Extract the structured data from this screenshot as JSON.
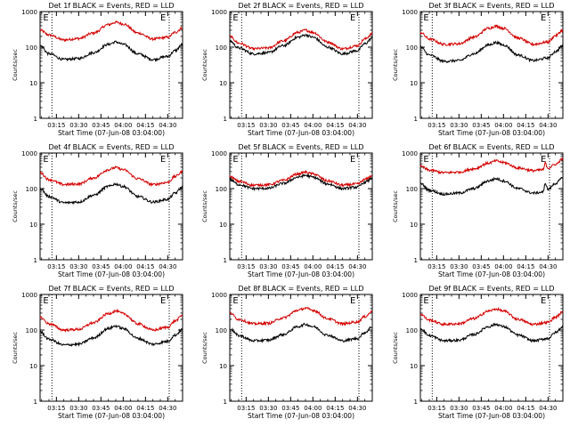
{
  "chart_data": [
    {
      "type": "line",
      "title": "Det 1f BLACK = Events, RED = LLD",
      "ylabel": "Counts/sec",
      "xlabel": "Start Time (07-Jun-08 03:04:00)",
      "yscale": "log",
      "ylim": [
        1,
        1000
      ],
      "yticks": [
        "1",
        "10",
        "100",
        "1000"
      ],
      "xticks": [
        "03:15",
        "03:30",
        "03:45",
        "04:00",
        "04:15",
        "04:30"
      ],
      "xlim": [
        "03:04",
        "04:40"
      ],
      "event_lines": [
        "03:12",
        "04:31"
      ],
      "annotations": [
        "E",
        "E"
      ],
      "series": [
        {
          "color": "#d40000",
          "x": [
            "03:04",
            "03:10",
            "03:20",
            "03:30",
            "03:40",
            "03:50",
            "03:55",
            "04:00",
            "04:10",
            "04:20",
            "04:30",
            "04:35",
            "04:40"
          ],
          "values": [
            300,
            220,
            160,
            175,
            250,
            430,
            500,
            450,
            250,
            170,
            190,
            260,
            350
          ]
        },
        {
          "color": "#000000",
          "x": [
            "03:04",
            "03:10",
            "03:20",
            "03:30",
            "03:40",
            "03:50",
            "03:55",
            "04:00",
            "04:10",
            "04:20",
            "04:30",
            "04:35",
            "04:40"
          ],
          "values": [
            110,
            65,
            45,
            48,
            70,
            120,
            140,
            120,
            65,
            45,
            55,
            80,
            120
          ]
        }
      ]
    },
    {
      "type": "line",
      "title": "Det 2f BLACK = Events, RED = LLD",
      "ylabel": "Counts/sec",
      "xlabel": "Start Time (07-Jun-08 03:04:00)",
      "yscale": "log",
      "ylim": [
        1,
        1000
      ],
      "yticks": [
        "1",
        "10",
        "100",
        "1000"
      ],
      "xticks": [
        "03:15",
        "03:30",
        "03:45",
        "04:00",
        "04:15",
        "04:30"
      ],
      "xlim": [
        "03:04",
        "04:40"
      ],
      "event_lines": [
        "03:12",
        "04:31"
      ],
      "annotations": [
        "E",
        "E"
      ],
      "series": [
        {
          "color": "#d40000",
          "x": [
            "03:04",
            "03:10",
            "03:20",
            "03:30",
            "03:40",
            "03:50",
            "03:55",
            "04:00",
            "04:10",
            "04:20",
            "04:30",
            "04:35",
            "04:40"
          ],
          "values": [
            200,
            130,
            90,
            95,
            150,
            260,
            300,
            260,
            140,
            90,
            110,
            170,
            240
          ]
        },
        {
          "color": "#000000",
          "x": [
            "03:04",
            "03:10",
            "03:20",
            "03:30",
            "03:40",
            "03:50",
            "03:55",
            "04:00",
            "04:10",
            "04:20",
            "04:30",
            "04:35",
            "04:40"
          ],
          "values": [
            150,
            95,
            65,
            70,
            110,
            190,
            220,
            190,
            100,
            65,
            80,
            125,
            180
          ]
        }
      ]
    },
    {
      "type": "line",
      "title": "Det 3f BLACK = Events, RED = LLD",
      "ylabel": "Counts/sec",
      "xlabel": "Start Time (07-Jun-08 03:04:00)",
      "yscale": "log",
      "ylim": [
        1,
        1000
      ],
      "yticks": [
        "1",
        "10",
        "100",
        "1000"
      ],
      "xticks": [
        "03:15",
        "03:30",
        "03:45",
        "04:00",
        "04:15",
        "04:30"
      ],
      "xlim": [
        "03:04",
        "04:40"
      ],
      "event_lines": [
        "03:12",
        "04:31"
      ],
      "annotations": [
        "E",
        "E"
      ],
      "series": [
        {
          "color": "#d40000",
          "x": [
            "03:04",
            "03:10",
            "03:20",
            "03:30",
            "03:40",
            "03:50",
            "03:55",
            "04:00",
            "04:10",
            "04:20",
            "04:30",
            "04:35",
            "04:40"
          ],
          "values": [
            260,
            170,
            120,
            125,
            190,
            340,
            390,
            340,
            180,
            120,
            140,
            210,
            300
          ]
        },
        {
          "color": "#000000",
          "x": [
            "03:04",
            "03:10",
            "03:20",
            "03:30",
            "03:40",
            "03:50",
            "03:55",
            "04:00",
            "04:10",
            "04:20",
            "04:30",
            "04:35",
            "04:40"
          ],
          "values": [
            100,
            60,
            40,
            42,
            65,
            115,
            135,
            115,
            60,
            42,
            50,
            75,
            110
          ]
        }
      ]
    },
    {
      "type": "line",
      "title": "Det 4f BLACK = Events, RED = LLD",
      "ylabel": "Counts/sec",
      "xlabel": "Start Time (07-Jun-08 03:04:00)",
      "yscale": "log",
      "ylim": [
        1,
        1000
      ],
      "yticks": [
        "1",
        "10",
        "100",
        "1000"
      ],
      "xticks": [
        "03:15",
        "03:30",
        "03:45",
        "04:00",
        "04:15",
        "04:30"
      ],
      "xlim": [
        "03:04",
        "04:40"
      ],
      "event_lines": [
        "03:12",
        "04:31"
      ],
      "annotations": [
        "E",
        "E"
      ],
      "series": [
        {
          "color": "#d40000",
          "x": [
            "03:04",
            "03:10",
            "03:20",
            "03:30",
            "03:40",
            "03:50",
            "03:55",
            "04:00",
            "04:10",
            "04:20",
            "04:30",
            "04:35",
            "04:40"
          ],
          "values": [
            280,
            180,
            130,
            135,
            200,
            340,
            390,
            340,
            190,
            130,
            150,
            220,
            300
          ]
        },
        {
          "color": "#000000",
          "x": [
            "03:04",
            "03:10",
            "03:20",
            "03:30",
            "03:40",
            "03:50",
            "03:55",
            "04:00",
            "04:10",
            "04:20",
            "04:30",
            "04:35",
            "04:40"
          ],
          "values": [
            100,
            60,
            40,
            42,
            65,
            115,
            135,
            115,
            60,
            42,
            50,
            75,
            110
          ]
        }
      ]
    },
    {
      "type": "line",
      "title": "Det 5f BLACK = Events, RED = LLD",
      "ylabel": "Counts/sec",
      "xlabel": "Start Time (07-Jun-08 03:04:00)",
      "yscale": "log",
      "ylim": [
        1,
        1000
      ],
      "yticks": [
        "1",
        "10",
        "100",
        "1000"
      ],
      "xticks": [
        "03:15",
        "03:30",
        "03:45",
        "04:00",
        "04:15",
        "04:30"
      ],
      "xlim": [
        "03:04",
        "04:40"
      ],
      "event_lines": [
        "03:12",
        "04:31"
      ],
      "annotations": [
        "E",
        "E"
      ],
      "series": [
        {
          "color": "#d40000",
          "x": [
            "03:04",
            "03:10",
            "03:20",
            "03:30",
            "03:40",
            "03:50",
            "03:55",
            "04:00",
            "04:10",
            "04:20",
            "04:30",
            "04:35",
            "04:40"
          ],
          "values": [
            220,
            160,
            125,
            128,
            170,
            260,
            290,
            260,
            165,
            125,
            135,
            180,
            230
          ]
        },
        {
          "color": "#000000",
          "x": [
            "03:04",
            "03:10",
            "03:20",
            "03:30",
            "03:40",
            "03:50",
            "03:55",
            "04:00",
            "04:10",
            "04:20",
            "04:30",
            "04:35",
            "04:40"
          ],
          "values": [
            180,
            130,
            100,
            102,
            140,
            210,
            235,
            210,
            135,
            100,
            110,
            150,
            195
          ]
        }
      ]
    },
    {
      "type": "line",
      "title": "Det 6f BLACK = Events, RED = LLD",
      "ylabel": "Counts/sec",
      "xlabel": "Start Time (07-Jun-08 03:04:00)",
      "yscale": "log",
      "ylim": [
        1,
        1000
      ],
      "yticks": [
        "1",
        "10",
        "100",
        "1000"
      ],
      "xticks": [
        "03:15",
        "03:30",
        "03:45",
        "04:00",
        "04:15",
        "04:30"
      ],
      "xlim": [
        "03:04",
        "04:40"
      ],
      "event_lines": [
        "03:12",
        "04:31"
      ],
      "annotations": [
        "E",
        "E"
      ],
      "series": [
        {
          "color": "#d40000",
          "x": [
            "03:04",
            "03:10",
            "03:20",
            "03:30",
            "03:40",
            "03:50",
            "03:55",
            "04:00",
            "04:10",
            "04:20",
            "04:27",
            "04:28",
            "04:30",
            "04:35",
            "04:40"
          ],
          "values": [
            420,
            330,
            280,
            290,
            360,
            520,
            600,
            540,
            380,
            320,
            340,
            520,
            380,
            480,
            680
          ]
        },
        {
          "color": "#000000",
          "x": [
            "03:04",
            "03:10",
            "03:20",
            "03:30",
            "03:40",
            "03:50",
            "03:55",
            "04:00",
            "04:10",
            "04:20",
            "04:27",
            "04:28",
            "04:30",
            "04:35",
            "04:40"
          ],
          "values": [
            140,
            90,
            70,
            75,
            100,
            165,
            190,
            165,
            100,
            75,
            80,
            145,
            95,
            140,
            200
          ]
        }
      ]
    },
    {
      "type": "line",
      "title": "Det 7f BLACK = Events, RED = LLD",
      "ylabel": "Counts/sec",
      "xlabel": "Start Time (07-Jun-08 03:04:00)",
      "yscale": "log",
      "ylim": [
        1,
        1000
      ],
      "yticks": [
        "1",
        "10",
        "100",
        "1000"
      ],
      "xticks": [
        "03:15",
        "03:30",
        "03:45",
        "04:00",
        "04:15",
        "04:30"
      ],
      "xlim": [
        "03:04",
        "04:40"
      ],
      "event_lines": [
        "03:12",
        "04:31"
      ],
      "annotations": [
        "E",
        "E"
      ],
      "series": [
        {
          "color": "#d40000",
          "x": [
            "03:04",
            "03:10",
            "03:20",
            "03:30",
            "03:40",
            "03:50",
            "03:55",
            "04:00",
            "04:10",
            "04:20",
            "04:30",
            "04:35",
            "04:40"
          ],
          "values": [
            230,
            150,
            100,
            105,
            160,
            290,
            340,
            290,
            150,
            100,
            120,
            180,
            260
          ]
        },
        {
          "color": "#000000",
          "x": [
            "03:04",
            "03:10",
            "03:20",
            "03:30",
            "03:40",
            "03:50",
            "03:55",
            "04:00",
            "04:10",
            "04:20",
            "04:30",
            "04:35",
            "04:40"
          ],
          "values": [
            90,
            55,
            38,
            40,
            60,
            110,
            130,
            110,
            58,
            40,
            48,
            72,
            105
          ]
        }
      ]
    },
    {
      "type": "line",
      "title": "Det 8f BLACK = Events, RED = LLD",
      "ylabel": "Counts/sec",
      "xlabel": "Start Time (07-Jun-08 03:04:00)",
      "yscale": "log",
      "ylim": [
        1,
        1000
      ],
      "yticks": [
        "1",
        "10",
        "100",
        "1000"
      ],
      "xticks": [
        "03:15",
        "03:30",
        "03:45",
        "04:00",
        "04:15",
        "04:30"
      ],
      "xlim": [
        "03:04",
        "04:40"
      ],
      "event_lines": [
        "03:12",
        "04:31"
      ],
      "annotations": [
        "E",
        "E"
      ],
      "series": [
        {
          "color": "#d40000",
          "x": [
            "03:04",
            "03:10",
            "03:20",
            "03:30",
            "03:40",
            "03:50",
            "03:55",
            "04:00",
            "04:10",
            "04:20",
            "04:30",
            "04:35",
            "04:40"
          ],
          "values": [
            300,
            200,
            150,
            155,
            220,
            360,
            410,
            360,
            210,
            150,
            170,
            240,
            330
          ]
        },
        {
          "color": "#000000",
          "x": [
            "03:04",
            "03:10",
            "03:20",
            "03:30",
            "03:40",
            "03:50",
            "03:55",
            "04:00",
            "04:10",
            "04:20",
            "04:30",
            "04:35",
            "04:40"
          ],
          "values": [
            110,
            70,
            50,
            52,
            75,
            125,
            145,
            125,
            72,
            50,
            58,
            85,
            125
          ]
        }
      ]
    },
    {
      "type": "line",
      "title": "Det 9f BLACK = Events, RED = LLD",
      "ylabel": "Counts/sec",
      "xlabel": "Start Time (07-Jun-08 03:04:00)",
      "yscale": "log",
      "ylim": [
        1,
        1000
      ],
      "yticks": [
        "1",
        "10",
        "100",
        "1000"
      ],
      "xticks": [
        "03:15",
        "03:30",
        "03:45",
        "04:00",
        "04:15",
        "04:30"
      ],
      "xlim": [
        "03:04",
        "04:40"
      ],
      "event_lines": [
        "03:12",
        "04:31"
      ],
      "annotations": [
        "E",
        "E"
      ],
      "series": [
        {
          "color": "#d40000",
          "x": [
            "03:04",
            "03:10",
            "03:20",
            "03:30",
            "03:40",
            "03:50",
            "03:55",
            "04:00",
            "04:10",
            "04:20",
            "04:30",
            "04:35",
            "04:40"
          ],
          "values": [
            280,
            190,
            145,
            150,
            210,
            340,
            390,
            340,
            200,
            145,
            165,
            230,
            320
          ]
        },
        {
          "color": "#000000",
          "x": [
            "03:04",
            "03:10",
            "03:20",
            "03:30",
            "03:40",
            "03:50",
            "03:55",
            "04:00",
            "04:10",
            "04:20",
            "04:30",
            "04:35",
            "04:40"
          ],
          "values": [
            110,
            70,
            50,
            52,
            75,
            125,
            145,
            125,
            72,
            50,
            58,
            85,
            125
          ]
        }
      ]
    }
  ]
}
